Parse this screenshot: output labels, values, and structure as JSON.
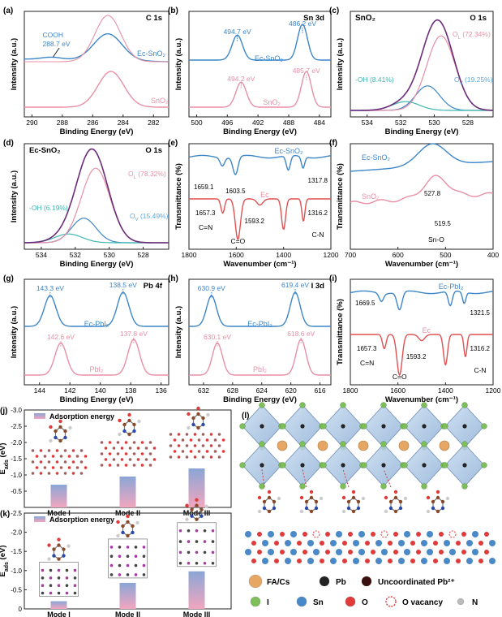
{
  "colors": {
    "blue": "#3d86c8",
    "pink": "#e88fa5",
    "purple": "#6b2c7a",
    "teal": "#3fb6b0",
    "lightblue": "#5aa9de",
    "gridbox": "#333333",
    "bar_top": "#8aa6d6",
    "bar_bottom": "#f2a6bf"
  },
  "chart_data": [
    {
      "id": "a",
      "type": "line",
      "panel_label": "(a)",
      "title": "C 1s",
      "xlabel": "Binding Energy (eV)",
      "ylabel": "Intensity (a.u.)",
      "xlim": [
        290.5,
        281
      ],
      "xreverse": true,
      "xticks": [
        "290",
        "288",
        "286",
        "284",
        "282"
      ],
      "series": [
        {
          "name": "Ec-SnO₂",
          "peaks": [
            {
              "x": 285.0,
              "fwhm": 2.2
            },
            {
              "x": 288.7,
              "fwhm": 1.6
            }
          ]
        },
        {
          "name": "SnO₂",
          "peaks": [
            {
              "x": 284.8,
              "fwhm": 2.0
            }
          ]
        }
      ],
      "annotations": [
        {
          "text": "COOH"
        },
        {
          "text": "288.7 eV"
        }
      ]
    },
    {
      "id": "b",
      "type": "line",
      "panel_label": "(b)",
      "title": "Sn 3d",
      "xlabel": "Binding Energy (eV)",
      "ylabel": "Intensity (a.u.)",
      "xlim": [
        501,
        482.5
      ],
      "xreverse": true,
      "xticks": [
        "500",
        "496",
        "492",
        "488",
        "484"
      ],
      "series": [
        {
          "name": "Ec-SnO₂",
          "peaks": [
            {
              "x": 494.7
            },
            {
              "x": 486.2
            }
          ]
        },
        {
          "name": "SnO₂",
          "peaks": [
            {
              "x": 494.2
            },
            {
              "x": 485.7
            }
          ]
        }
      ],
      "annotations": [
        {
          "text": "494.7 eV"
        },
        {
          "text": "486.2 eV"
        },
        {
          "text": "494.2 eV"
        },
        {
          "text": "485.7 eV"
        }
      ]
    },
    {
      "id": "c",
      "type": "line",
      "panel_label": "SnO₂",
      "title": "O 1s",
      "xlabel": "Binding Energy (eV)",
      "ylabel": "Intensity (a.u.)",
      "xlim": [
        535,
        526.5
      ],
      "xreverse": true,
      "xticks": [
        "534",
        "532",
        "530",
        "528"
      ],
      "series": [
        {
          "name": "O_L",
          "peak": 529.6,
          "share_percent": 72.34
        },
        {
          "name": "O_V",
          "peak": 530.4,
          "share_percent": 19.25
        },
        {
          "name": "-OH",
          "peak": 531.7,
          "share_percent": 8.41
        }
      ],
      "annotations": [
        {
          "text": "O",
          "sub": "L",
          "rest": " (72.34%)"
        },
        {
          "text": "-OH (8.41%)"
        },
        {
          "text": "O",
          "sub": "V",
          "rest": " (19.25%)"
        }
      ]
    },
    {
      "id": "d",
      "type": "line",
      "panel_label": "(d)",
      "title": "O 1s",
      "sample": "Ec-SnO₂",
      "xlabel": "Binding Energy (eV)",
      "ylabel": "Intensity (a.u.)",
      "xlim": [
        535,
        526.5
      ],
      "xreverse": true,
      "xticks": [
        "534",
        "532",
        "530",
        "528"
      ],
      "series": [
        {
          "name": "O_L",
          "peak": 530.8,
          "share_percent": 78.32
        },
        {
          "name": "O_V",
          "peak": 531.5,
          "share_percent": 15.49
        },
        {
          "name": "-OH",
          "peak": 532.4,
          "share_percent": 6.19
        }
      ],
      "annotations": [
        {
          "text": "O",
          "sub": "L",
          "rest": " (78.32%)"
        },
        {
          "text": "-OH (6.19%)"
        },
        {
          "text": "O",
          "sub": "V",
          "rest": " (15.49%)"
        }
      ]
    },
    {
      "id": "e",
      "type": "line",
      "panel_label": "(e)",
      "xlabel": "Wavenumber (cm⁻¹)",
      "ylabel": "Transmittance (%)",
      "xlim": [
        1800,
        1200
      ],
      "xreverse": true,
      "xticks": [
        "1800",
        "1600",
        "1400",
        "1200"
      ],
      "series": [
        {
          "name": "Ec-SnO₂",
          "dips": [
            1659.1,
            1603.5,
            1317.8
          ]
        },
        {
          "name": "Ec",
          "dips": [
            1657.3,
            1593.2,
            1316.2
          ]
        }
      ],
      "annotations": [
        {
          "text": "1659.1"
        },
        {
          "text": "1603.5"
        },
        {
          "text": "1317.8"
        },
        {
          "text": "1657.3"
        },
        {
          "text": "1593.2"
        },
        {
          "text": "1316.2"
        },
        {
          "text": "C=N"
        },
        {
          "text": "C=O"
        },
        {
          "text": "C-N"
        }
      ]
    },
    {
      "id": "f",
      "type": "line",
      "panel_label": "(f)",
      "xlabel": "Wavenumber (cm⁻¹)",
      "ylabel": "Transmittance (%)",
      "xlim": [
        700,
        400
      ],
      "xreverse": true,
      "xticks": [
        "700",
        "600",
        "500",
        "400"
      ],
      "series": [
        {
          "name": "Ec-SnO₂",
          "dips": [
            527.8
          ]
        },
        {
          "name": "SnO₂",
          "dips": [
            519.5
          ]
        }
      ],
      "annotations": [
        {
          "text": "527.8"
        },
        {
          "text": "519.5"
        },
        {
          "text": "Sn-O"
        }
      ]
    },
    {
      "id": "g",
      "type": "line",
      "panel_label": "(g)",
      "title": "Pb 4f",
      "xlabel": "Binding Energy (eV)",
      "ylabel": "Intensity (a.u.)",
      "xlim": [
        145,
        135.5
      ],
      "xreverse": true,
      "xticks": [
        "144",
        "142",
        "140",
        "138",
        "136"
      ],
      "series": [
        {
          "name": "Ec-PbI₂",
          "peaks": [
            {
              "x": 143.3
            },
            {
              "x": 138.5
            }
          ]
        },
        {
          "name": "PbI₂",
          "peaks": [
            {
              "x": 142.6
            },
            {
              "x": 137.8
            }
          ]
        }
      ],
      "annotations": [
        {
          "text": "143.3 eV"
        },
        {
          "text": "138.5 eV"
        },
        {
          "text": "142.6 eV"
        },
        {
          "text": "137.8 eV"
        }
      ]
    },
    {
      "id": "h",
      "type": "line",
      "panel_label": "(h)",
      "title": "I 3d",
      "xlabel": "Binding Energy (eV)",
      "ylabel": "Intensity (a.u.)",
      "xlim": [
        634,
        614.5
      ],
      "xreverse": true,
      "xticks": [
        "632",
        "628",
        "624",
        "620",
        "616"
      ],
      "series": [
        {
          "name": "Ec-PbI₂",
          "peaks": [
            {
              "x": 630.9
            },
            {
              "x": 619.4
            }
          ]
        },
        {
          "name": "PbI₂",
          "peaks": [
            {
              "x": 630.1
            },
            {
              "x": 618.6
            }
          ]
        }
      ],
      "annotations": [
        {
          "text": "630.9 eV"
        },
        {
          "text": "619.4 eV"
        },
        {
          "text": "630.1 eV"
        },
        {
          "text": "618.6 eV"
        }
      ]
    },
    {
      "id": "i",
      "type": "line",
      "panel_label": "(i)",
      "xlabel": "Wavenumber (cm⁻¹)",
      "ylabel": "Transmittance (%)",
      "xlim": [
        1800,
        1200
      ],
      "xreverse": true,
      "xticks": [
        "1800",
        "1600",
        "1400",
        "1200"
      ],
      "series": [
        {
          "name": "Ec-PbI₂",
          "dips": [
            1669.5,
            1593.2,
            1321.5
          ]
        },
        {
          "name": "Ec",
          "dips": [
            1657.3,
            1593.2,
            1316.2
          ]
        }
      ],
      "annotations": [
        {
          "text": "1669.5"
        },
        {
          "text": "1321.5"
        },
        {
          "text": "1657.3"
        },
        {
          "text": "1593.2"
        },
        {
          "text": "1316.2"
        },
        {
          "text": "C=N"
        },
        {
          "text": "C=O"
        },
        {
          "text": "C-N"
        }
      ]
    },
    {
      "id": "j",
      "type": "bar",
      "panel_label": "(j)",
      "legend": "Adsorption energy",
      "ylabel": "E_ads (eV)",
      "ylim": [
        0,
        -3.0
      ],
      "yticks": [
        "-3.0",
        "-2.5",
        "-2.0",
        "-1.5",
        "-1.0",
        "-0.5"
      ],
      "categories": [
        "Mode I",
        "Mode II",
        "Mode III"
      ],
      "values": [
        -0.7,
        -0.95,
        -1.2
      ]
    },
    {
      "id": "k",
      "type": "bar",
      "panel_label": "(k)",
      "legend": "Adsorption energy",
      "ylabel": "E_ads (eV)",
      "ylim": [
        0,
        -2.5
      ],
      "yticks": [
        "-2.5",
        "-2.0",
        "-1.5",
        "-1.0",
        "-0.5",
        "0"
      ],
      "categories": [
        "Mode I",
        "Mode II",
        "Mode III"
      ],
      "values": [
        -0.2,
        -0.68,
        -0.98
      ]
    }
  ],
  "panel_l": {
    "label": "(l)",
    "legend": [
      {
        "name": "FA/Cs",
        "color": "#e6a765"
      },
      {
        "name": "Pb",
        "color": "#222222"
      },
      {
        "name": "Uncoordinated Pb²⁺",
        "color": "#3a0f0f"
      },
      {
        "name": "I",
        "color": "#7fbf5a"
      },
      {
        "name": "Sn",
        "color": "#4a89c8"
      },
      {
        "name": "O",
        "color": "#e03a3a"
      },
      {
        "name": "O vacancy",
        "color": "#e03a3a"
      },
      {
        "name": "N",
        "color": "#bbbbbb"
      }
    ]
  }
}
